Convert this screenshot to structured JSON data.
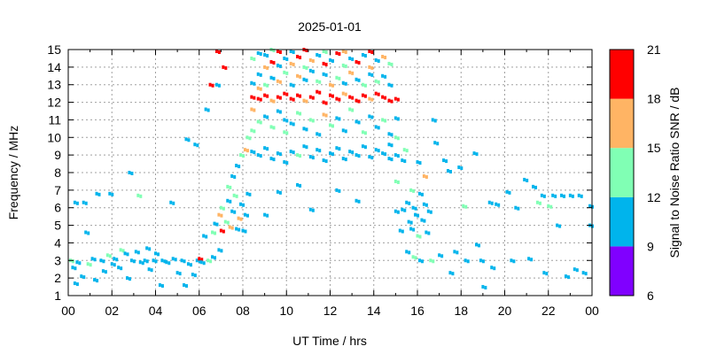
{
  "chart_data": {
    "type": "heatmap",
    "title": "2025-01-01",
    "xlabel": "UT Time / hrs",
    "ylabel": "Frequency / MHz",
    "xlim": [
      0,
      24
    ],
    "ylim": [
      1,
      15
    ],
    "xtick_labels": [
      "00",
      "02",
      "04",
      "06",
      "08",
      "10",
      "12",
      "14",
      "16",
      "18",
      "20",
      "22",
      "00"
    ],
    "ytick_labels": [
      "1",
      "2",
      "3",
      "4",
      "5",
      "6",
      "7",
      "8",
      "9",
      "10",
      "11",
      "12",
      "13",
      "14",
      "15"
    ],
    "grid": true,
    "colorbar": {
      "label": "Signal to Noise Ratio SNR / dB",
      "range": [
        6,
        21
      ],
      "tick_labels": [
        "6",
        "9",
        "12",
        "15",
        "18",
        "21"
      ],
      "bins": [
        {
          "min": 6,
          "max": 9,
          "color": "#8000ff"
        },
        {
          "min": 9,
          "max": 12,
          "color": "#00b4ec"
        },
        {
          "min": 12,
          "max": 15,
          "color": "#80ffb4"
        },
        {
          "min": 15,
          "max": 18,
          "color": "#ffb464"
        },
        {
          "min": 18,
          "max": 21,
          "color": "#ff0000"
        }
      ]
    },
    "points_format": [
      "hour",
      "MHz",
      "SNR dB"
    ],
    "points": [
      [
        0.1,
        3.0,
        13
      ],
      [
        0.2,
        2.6,
        10
      ],
      [
        0.3,
        1.7,
        10
      ],
      [
        0.4,
        2.9,
        10
      ],
      [
        0.3,
        6.3,
        10
      ],
      [
        0.7,
        6.3,
        10
      ],
      [
        0.6,
        2.1,
        10
      ],
      [
        0.8,
        4.6,
        10
      ],
      [
        0.9,
        2.8,
        13
      ],
      [
        1.1,
        3.1,
        10
      ],
      [
        1.2,
        1.9,
        10
      ],
      [
        1.3,
        6.8,
        10
      ],
      [
        1.5,
        3.0,
        10
      ],
      [
        1.6,
        2.4,
        10
      ],
      [
        1.8,
        3.3,
        13
      ],
      [
        1.9,
        6.8,
        10
      ],
      [
        2.0,
        2.8,
        10
      ],
      [
        2.1,
        3.1,
        10
      ],
      [
        2.3,
        2.6,
        10
      ],
      [
        2.4,
        3.6,
        13
      ],
      [
        2.6,
        3.4,
        10
      ],
      [
        2.7,
        2.0,
        10
      ],
      [
        2.8,
        8.0,
        10
      ],
      [
        2.9,
        3.0,
        10
      ],
      [
        3.1,
        3.5,
        10
      ],
      [
        3.2,
        6.7,
        13
      ],
      [
        3.3,
        2.9,
        10
      ],
      [
        3.5,
        3.0,
        10
      ],
      [
        3.6,
        3.7,
        10
      ],
      [
        3.7,
        2.5,
        10
      ],
      [
        3.9,
        3.0,
        10
      ],
      [
        4.0,
        3.4,
        10
      ],
      [
        4.2,
        1.6,
        10
      ],
      [
        4.3,
        3.0,
        10
      ],
      [
        4.5,
        2.9,
        10
      ],
      [
        4.7,
        6.3,
        10
      ],
      [
        4.8,
        3.1,
        10
      ],
      [
        5.0,
        2.3,
        10
      ],
      [
        5.2,
        3.0,
        10
      ],
      [
        5.3,
        1.6,
        10
      ],
      [
        5.5,
        2.8,
        10
      ],
      [
        5.7,
        2.2,
        10
      ],
      [
        5.4,
        9.9,
        10
      ],
      [
        5.8,
        9.6,
        10
      ],
      [
        5.9,
        3.0,
        10
      ],
      [
        6.0,
        3.1,
        19
      ],
      [
        6.1,
        2.9,
        10
      ],
      [
        6.2,
        4.4,
        10
      ],
      [
        6.3,
        11.6,
        10
      ],
      [
        6.4,
        3.0,
        13
      ],
      [
        6.5,
        13.0,
        19
      ],
      [
        6.6,
        3.2,
        10
      ],
      [
        6.6,
        4.6,
        13
      ],
      [
        6.7,
        5.1,
        10
      ],
      [
        6.8,
        13.0,
        10
      ],
      [
        6.8,
        14.9,
        19
      ],
      [
        6.9,
        3.6,
        10
      ],
      [
        6.9,
        5.6,
        16
      ],
      [
        7.0,
        4.7,
        19
      ],
      [
        7.0,
        6.0,
        13
      ],
      [
        7.1,
        14.0,
        19
      ],
      [
        7.2,
        5.2,
        13
      ],
      [
        7.3,
        6.4,
        10
      ],
      [
        7.3,
        7.2,
        13
      ],
      [
        7.4,
        4.9,
        16
      ],
      [
        7.5,
        5.8,
        10
      ],
      [
        7.5,
        7.8,
        10
      ],
      [
        7.6,
        6.7,
        13
      ],
      [
        7.7,
        4.8,
        10
      ],
      [
        7.7,
        8.4,
        10
      ],
      [
        7.8,
        5.4,
        16
      ],
      [
        7.9,
        6.2,
        10
      ],
      [
        7.9,
        9.0,
        13
      ],
      [
        8.0,
        4.7,
        10
      ],
      [
        8.1,
        5.6,
        10
      ],
      [
        8.1,
        9.3,
        16
      ],
      [
        8.2,
        6.8,
        10
      ],
      [
        8.2,
        10.0,
        13
      ],
      [
        8.4,
        9.2,
        10
      ],
      [
        8.4,
        10.4,
        13
      ],
      [
        8.4,
        11.6,
        16
      ],
      [
        8.4,
        12.3,
        19
      ],
      [
        8.4,
        13.1,
        10
      ],
      [
        8.4,
        14.5,
        13
      ],
      [
        8.7,
        9.0,
        10
      ],
      [
        8.7,
        10.9,
        13
      ],
      [
        8.7,
        12.2,
        19
      ],
      [
        8.7,
        12.8,
        16
      ],
      [
        8.7,
        13.6,
        10
      ],
      [
        8.7,
        14.8,
        10
      ],
      [
        9.0,
        9.4,
        10
      ],
      [
        9.0,
        11.2,
        10
      ],
      [
        9.0,
        12.4,
        19
      ],
      [
        9.0,
        13.0,
        13
      ],
      [
        9.0,
        14.0,
        16
      ],
      [
        9.0,
        14.7,
        10
      ],
      [
        9.0,
        5.6,
        10
      ],
      [
        9.3,
        8.8,
        10
      ],
      [
        9.3,
        10.6,
        13
      ],
      [
        9.3,
        12.1,
        16
      ],
      [
        9.3,
        13.4,
        10
      ],
      [
        9.3,
        14.3,
        19
      ],
      [
        9.3,
        15.0,
        13
      ],
      [
        9.6,
        9.1,
        10
      ],
      [
        9.6,
        11.5,
        10
      ],
      [
        9.6,
        12.3,
        19
      ],
      [
        9.6,
        13.2,
        16
      ],
      [
        9.6,
        14.1,
        10
      ],
      [
        9.6,
        14.9,
        19
      ],
      [
        9.6,
        6.9,
        10
      ],
      [
        9.9,
        8.6,
        10
      ],
      [
        9.9,
        10.3,
        13
      ],
      [
        9.9,
        12.5,
        19
      ],
      [
        9.9,
        13.7,
        13
      ],
      [
        9.9,
        14.5,
        10
      ],
      [
        9.9,
        11.0,
        10
      ],
      [
        10.2,
        9.2,
        10
      ],
      [
        10.2,
        10.8,
        10
      ],
      [
        10.2,
        12.2,
        19
      ],
      [
        10.2,
        13.0,
        10
      ],
      [
        10.2,
        14.2,
        16
      ],
      [
        10.2,
        14.9,
        10
      ],
      [
        10.5,
        9.0,
        13
      ],
      [
        10.5,
        11.4,
        13
      ],
      [
        10.5,
        12.4,
        19
      ],
      [
        10.5,
        13.5,
        16
      ],
      [
        10.5,
        14.6,
        19
      ],
      [
        10.5,
        7.3,
        10
      ],
      [
        10.8,
        9.5,
        10
      ],
      [
        10.8,
        10.5,
        10
      ],
      [
        10.8,
        12.1,
        16
      ],
      [
        10.8,
        13.3,
        10
      ],
      [
        10.8,
        14.0,
        13
      ],
      [
        10.8,
        15.0,
        19
      ],
      [
        11.1,
        8.9,
        10
      ],
      [
        11.1,
        11.0,
        13
      ],
      [
        11.1,
        12.3,
        19
      ],
      [
        11.1,
        13.8,
        10
      ],
      [
        11.1,
        14.4,
        16
      ],
      [
        11.1,
        5.9,
        10
      ],
      [
        11.4,
        9.3,
        10
      ],
      [
        11.4,
        10.2,
        10
      ],
      [
        11.4,
        12.6,
        19
      ],
      [
        11.4,
        13.2,
        13
      ],
      [
        11.4,
        14.7,
        10
      ],
      [
        11.7,
        8.7,
        10
      ],
      [
        11.7,
        11.3,
        16
      ],
      [
        11.7,
        12.0,
        19
      ],
      [
        11.7,
        13.6,
        10
      ],
      [
        11.7,
        14.2,
        19
      ],
      [
        11.7,
        14.9,
        13
      ],
      [
        12.0,
        9.1,
        10
      ],
      [
        12.0,
        10.7,
        13
      ],
      [
        12.0,
        12.4,
        19
      ],
      [
        12.0,
        13.0,
        16
      ],
      [
        12.0,
        14.4,
        10
      ],
      [
        12.3,
        9.4,
        10
      ],
      [
        12.3,
        11.1,
        10
      ],
      [
        12.3,
        12.2,
        19
      ],
      [
        12.3,
        13.4,
        13
      ],
      [
        12.3,
        14.8,
        19
      ],
      [
        12.3,
        7.0,
        10
      ],
      [
        12.6,
        8.8,
        10
      ],
      [
        12.6,
        10.4,
        10
      ],
      [
        12.6,
        12.5,
        16
      ],
      [
        12.6,
        13.1,
        10
      ],
      [
        12.6,
        14.1,
        13
      ],
      [
        12.6,
        14.9,
        16
      ],
      [
        12.9,
        9.2,
        10
      ],
      [
        12.9,
        11.6,
        13
      ],
      [
        12.9,
        12.3,
        19
      ],
      [
        12.9,
        13.7,
        16
      ],
      [
        12.9,
        14.5,
        10
      ],
      [
        13.2,
        9.0,
        10
      ],
      [
        13.2,
        10.9,
        10
      ],
      [
        13.2,
        12.1,
        19
      ],
      [
        13.2,
        13.3,
        10
      ],
      [
        13.2,
        14.3,
        19
      ],
      [
        13.2,
        6.4,
        10
      ],
      [
        13.5,
        9.5,
        10
      ],
      [
        13.5,
        10.3,
        13
      ],
      [
        13.5,
        12.4,
        19
      ],
      [
        13.5,
        13.0,
        13
      ],
      [
        13.5,
        14.7,
        10
      ],
      [
        13.8,
        8.9,
        10
      ],
      [
        13.8,
        11.2,
        10
      ],
      [
        13.8,
        12.2,
        16
      ],
      [
        13.8,
        13.6,
        10
      ],
      [
        13.8,
        14.0,
        16
      ],
      [
        13.8,
        14.9,
        19
      ],
      [
        14.1,
        9.3,
        10
      ],
      [
        14.1,
        10.6,
        10
      ],
      [
        14.1,
        12.5,
        19
      ],
      [
        14.1,
        13.2,
        13
      ],
      [
        14.1,
        14.4,
        10
      ],
      [
        14.4,
        9.1,
        10
      ],
      [
        14.4,
        11.0,
        13
      ],
      [
        14.4,
        12.3,
        19
      ],
      [
        14.4,
        13.5,
        10
      ],
      [
        14.4,
        14.6,
        16
      ],
      [
        14.7,
        8.8,
        10
      ],
      [
        14.7,
        10.2,
        10
      ],
      [
        14.7,
        12.1,
        19
      ],
      [
        14.7,
        13.0,
        10
      ],
      [
        14.7,
        14.2,
        13
      ],
      [
        14.7,
        9.6,
        10
      ],
      [
        15.0,
        9.0,
        10
      ],
      [
        15.0,
        10.0,
        13
      ],
      [
        15.0,
        11.1,
        10
      ],
      [
        15.0,
        12.2,
        19
      ],
      [
        15.0,
        5.8,
        10
      ],
      [
        15.0,
        7.5,
        13
      ],
      [
        15.2,
        4.7,
        10
      ],
      [
        15.3,
        5.9,
        10
      ],
      [
        15.3,
        8.7,
        10
      ],
      [
        15.4,
        9.3,
        13
      ],
      [
        15.5,
        3.5,
        10
      ],
      [
        15.5,
        6.3,
        10
      ],
      [
        15.6,
        5.2,
        10
      ],
      [
        15.7,
        7.0,
        13
      ],
      [
        15.7,
        4.8,
        10
      ],
      [
        15.8,
        3.2,
        13
      ],
      [
        15.8,
        6.0,
        10
      ],
      [
        15.9,
        5.6,
        10
      ],
      [
        16.0,
        8.6,
        10
      ],
      [
        16.0,
        4.4,
        13
      ],
      [
        16.1,
        6.8,
        10
      ],
      [
        16.1,
        3.0,
        10
      ],
      [
        16.2,
        5.3,
        10
      ],
      [
        16.3,
        6.2,
        10
      ],
      [
        16.3,
        7.8,
        16
      ],
      [
        16.4,
        4.6,
        10
      ],
      [
        16.5,
        5.8,
        10
      ],
      [
        16.6,
        3.0,
        13
      ],
      [
        16.7,
        11.0,
        10
      ],
      [
        16.8,
        9.7,
        10
      ],
      [
        17.0,
        3.3,
        10
      ],
      [
        17.2,
        8.7,
        10
      ],
      [
        17.4,
        8.1,
        10
      ],
      [
        17.5,
        2.3,
        10
      ],
      [
        17.7,
        3.5,
        10
      ],
      [
        17.9,
        8.3,
        10
      ],
      [
        18.1,
        6.1,
        13
      ],
      [
        18.2,
        3.0,
        10
      ],
      [
        18.6,
        9.1,
        10
      ],
      [
        18.7,
        3.9,
        10
      ],
      [
        18.9,
        3.0,
        10
      ],
      [
        19.0,
        1.5,
        10
      ],
      [
        19.3,
        6.3,
        10
      ],
      [
        19.4,
        2.6,
        10
      ],
      [
        19.6,
        6.2,
        10
      ],
      [
        20.1,
        6.9,
        10
      ],
      [
        20.3,
        3.0,
        10
      ],
      [
        20.5,
        6.0,
        10
      ],
      [
        20.9,
        7.6,
        10
      ],
      [
        21.1,
        3.1,
        10
      ],
      [
        21.3,
        7.2,
        10
      ],
      [
        21.5,
        6.3,
        13
      ],
      [
        21.7,
        6.7,
        10
      ],
      [
        21.8,
        2.3,
        10
      ],
      [
        22.0,
        6.1,
        13
      ],
      [
        22.2,
        6.7,
        10
      ],
      [
        22.4,
        5.0,
        10
      ],
      [
        22.6,
        6.7,
        10
      ],
      [
        22.8,
        2.1,
        10
      ],
      [
        23.0,
        6.7,
        10
      ],
      [
        23.2,
        2.5,
        10
      ],
      [
        23.4,
        6.7,
        10
      ],
      [
        23.6,
        2.3,
        10
      ],
      [
        23.9,
        5.0,
        10
      ],
      [
        23.9,
        6.1,
        10
      ]
    ]
  }
}
